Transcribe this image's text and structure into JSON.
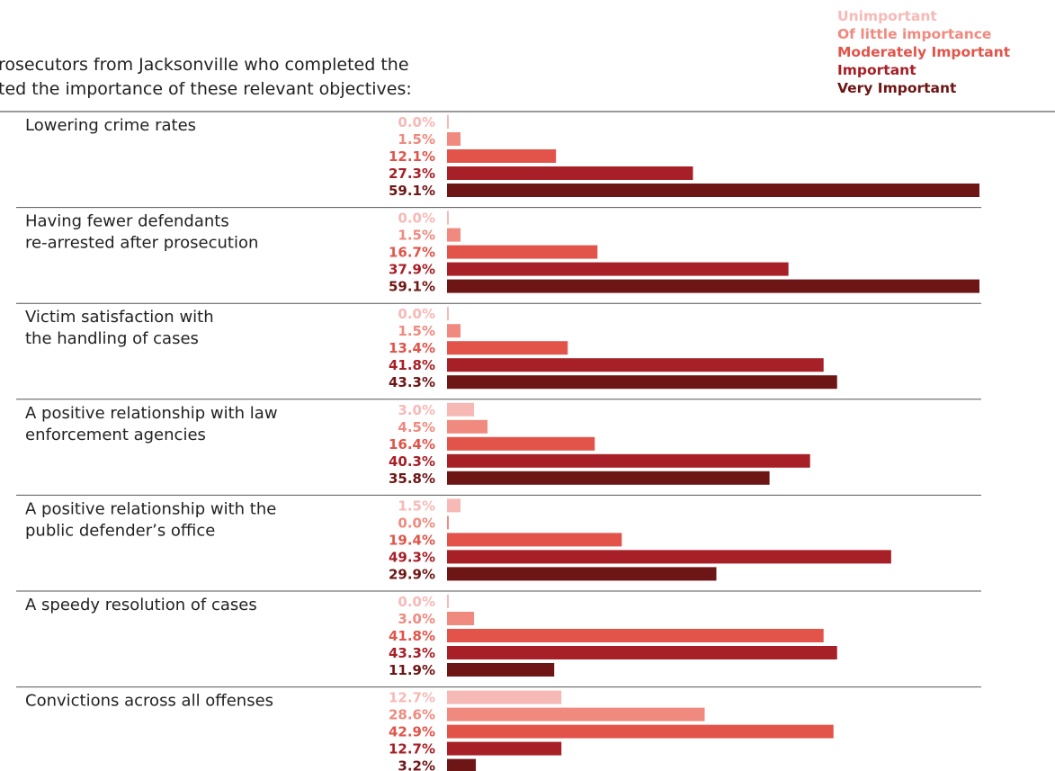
{
  "intro_lines": [
    "rosecutors from Jacksonville who completed the",
    "ted the importance of these relevant objectives:"
  ],
  "colors": {
    "Unimportant": "#f7b9b6",
    "Of little importance": "#f08a7f",
    "Moderately Important": "#e2544a",
    "Important": "#a71f27",
    "Very Important": "#6e1515"
  },
  "chart_data": {
    "type": "bar",
    "orientation": "horizontal",
    "unit": "%",
    "legend_position": "top-right",
    "grid": false,
    "xlim": [
      0,
      59.1
    ],
    "series": [
      {
        "name": "Unimportant"
      },
      {
        "name": "Of little importance"
      },
      {
        "name": "Moderately Important"
      },
      {
        "name": "Important"
      },
      {
        "name": "Very Important"
      }
    ],
    "categories": [
      {
        "label_lines": [
          "Lowering crime rates"
        ],
        "values": [
          0.0,
          1.5,
          12.1,
          27.3,
          59.1
        ]
      },
      {
        "label_lines": [
          "Having fewer defendants",
          "re-arrested after prosecution"
        ],
        "values": [
          0.0,
          1.5,
          16.7,
          37.9,
          59.1
        ]
      },
      {
        "label_lines": [
          "Victim satisfaction with",
          "the handling of cases"
        ],
        "values": [
          0.0,
          1.5,
          13.4,
          41.8,
          43.3
        ]
      },
      {
        "label_lines": [
          "A positive relationship with law",
          "enforcement agencies"
        ],
        "values": [
          3.0,
          4.5,
          16.4,
          40.3,
          35.8
        ]
      },
      {
        "label_lines": [
          "A positive relationship with the",
          "public defender’s office"
        ],
        "values": [
          1.5,
          0.0,
          19.4,
          49.3,
          29.9
        ]
      },
      {
        "label_lines": [
          "A speedy resolution of cases"
        ],
        "values": [
          0.0,
          3.0,
          41.8,
          43.3,
          11.9
        ]
      },
      {
        "label_lines": [
          "Convictions across all offenses"
        ],
        "values": [
          12.7,
          28.6,
          42.9,
          12.7,
          3.2
        ]
      }
    ]
  }
}
